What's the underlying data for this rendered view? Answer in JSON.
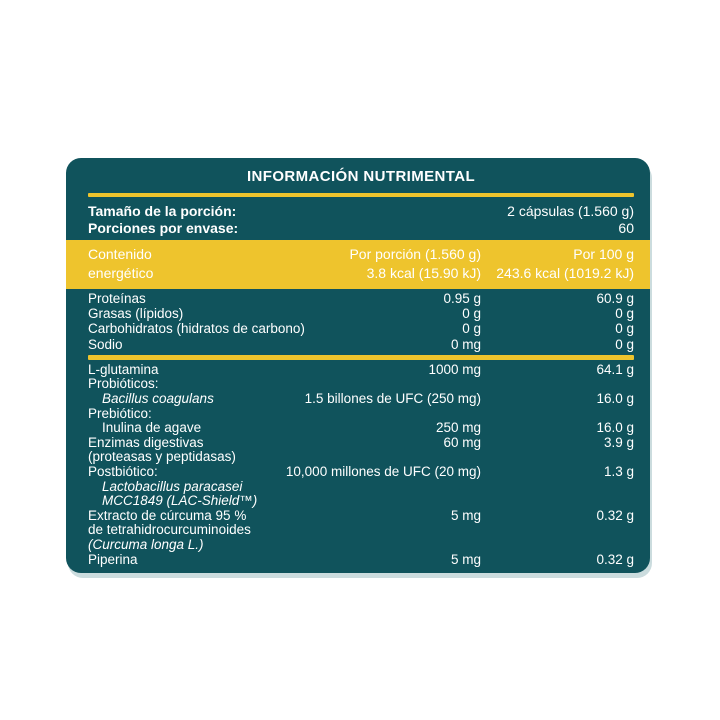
{
  "colors": {
    "teal": "#10535C",
    "yellow": "#EEC42D",
    "text": "#FFFFFF",
    "edge": "#CBDCDE"
  },
  "header": {
    "title": "INFORMACIÓN NUTRIMENTAL"
  },
  "serving": {
    "rows": [
      {
        "label": "Tamaño de la porción:",
        "value": "2 cápsulas (1.560 g)"
      },
      {
        "label": "Porciones por envase:",
        "value": "60"
      }
    ]
  },
  "energy": {
    "label_line1": "Contenido",
    "label_line2": "energético",
    "per_serving_line1": "Por porción (1.560 g)",
    "per_serving_line2": "3.8 kcal (15.90 kJ)",
    "per_100g_line1": "Por 100 g",
    "per_100g_line2": "243.6 kcal (1019.2 kJ)"
  },
  "macros": [
    {
      "label": "Proteínas",
      "per_serving": "0.95 g",
      "per_100g": "60.9 g"
    },
    {
      "label": "Grasas (lípidos)",
      "per_serving": "0 g",
      "per_100g": "0 g"
    },
    {
      "label": "Carbohidratos (hidratos de carbono)",
      "per_serving": "0 g",
      "per_100g": "0 g"
    },
    {
      "label": "Sodio",
      "per_serving": "0 mg",
      "per_100g": "0 g"
    }
  ],
  "ingredients": [
    {
      "lines": [
        {
          "text": "L-glutamina"
        }
      ],
      "per_serving": "1000 mg",
      "per_100g": "64.1 g"
    },
    {
      "lines": [
        {
          "text": "Probióticos:"
        }
      ]
    },
    {
      "lines": [
        {
          "text": "Bacillus coagulans"
        }
      ],
      "per_serving": "1.5 billones de UFC (250 mg)",
      "per_100g": "16.0 g"
    },
    {
      "lines": [
        {
          "text": "Prebiótico:"
        }
      ]
    },
    {
      "lines": [
        {
          "text": "Inulina de agave"
        }
      ],
      "per_serving": "250 mg",
      "per_100g": "16.0 g"
    },
    {
      "lines": [
        {
          "text": "Enzimas digestivas"
        },
        {
          "text": "(proteasas y peptidasas)"
        }
      ],
      "per_serving": "60 mg",
      "per_100g": "3.9 g"
    },
    {
      "lines": [
        {
          "text": "Postbiótico:"
        },
        {
          "text": "Lactobacillus paracasei"
        },
        {
          "text": "MCC1849 (LAC-Shield™)"
        }
      ],
      "per_serving": "10,000 millones de UFC (20 mg)",
      "per_100g": "1.3 g"
    },
    {
      "lines": [
        {
          "text": "Extracto de cúrcuma 95 %"
        },
        {
          "text": "de tetrahidrocurcuminoides"
        },
        {
          "text": "(Curcuma longa L.)"
        }
      ],
      "per_serving": "5 mg",
      "per_100g": "0.32 g"
    },
    {
      "lines": [
        {
          "text": "Piperina"
        }
      ],
      "per_serving": "5 mg",
      "per_100g": "0.32 g"
    }
  ]
}
